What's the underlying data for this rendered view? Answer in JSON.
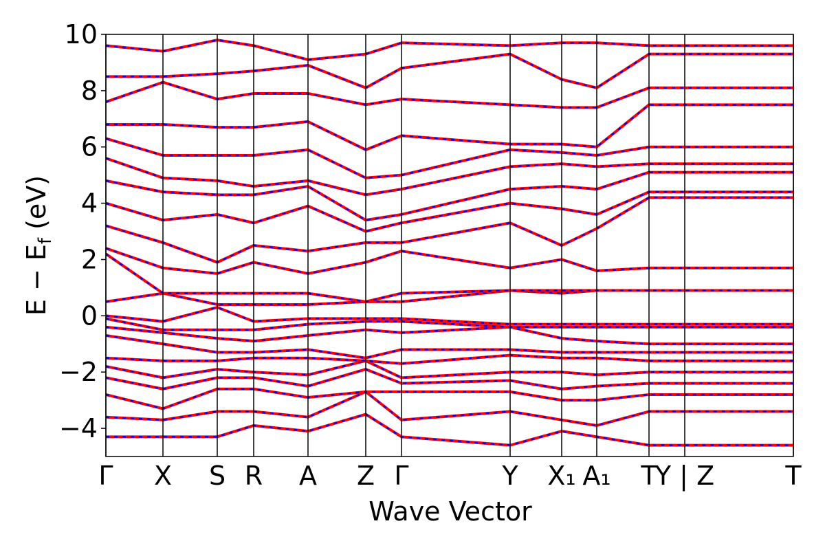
{
  "chart_data": {
    "type": "line",
    "xlabel": "Wave Vector",
    "ylabel": [
      "E − E",
      "f",
      " (eV)"
    ],
    "xlim": [
      0,
      10.0
    ],
    "ylim": [
      -5,
      10
    ],
    "xticks": [
      {
        "value": 0,
        "label": "Γ"
      },
      {
        "value": 0.83,
        "label": "X"
      },
      {
        "value": 1.62,
        "label": "S"
      },
      {
        "value": 2.15,
        "label": "R"
      },
      {
        "value": 2.94,
        "label": "A"
      },
      {
        "value": 3.78,
        "label": "Z"
      },
      {
        "value": 4.3,
        "label": "Γ"
      },
      {
        "value": 5.88,
        "label": "Y"
      },
      {
        "value": 6.63,
        "label": "X₁"
      },
      {
        "value": 7.14,
        "label": "A₁"
      },
      {
        "value": 7.9,
        "label": "T"
      },
      {
        "value": 8.42,
        "label": "Y | Z"
      },
      {
        "value": 10.0,
        "label": "T"
      }
    ],
    "yticks": [
      {
        "value": -4,
        "label": "−4"
      },
      {
        "value": -2,
        "label": "−2"
      },
      0,
      2,
      4,
      6,
      8,
      10
    ],
    "x": [
      0,
      0.83,
      1.62,
      2.15,
      2.94,
      3.78,
      4.3,
      5.88,
      6.63,
      7.14,
      7.9,
      8.42,
      10.0
    ],
    "line_styles": [
      {
        "color": "#ff0000",
        "width": 4
      },
      {
        "color": "#0000ff",
        "width": 2.5,
        "dash": [
          5,
          7
        ]
      }
    ],
    "bands": [
      [
        -4.3,
        -4.3,
        -4.3,
        -3.9,
        -4.1,
        -3.5,
        -4.3,
        -4.6,
        -4.1,
        -4.3,
        -4.6,
        -4.6,
        -4.6
      ],
      [
        -3.6,
        -3.7,
        -3.4,
        -3.4,
        -3.6,
        -2.7,
        -3.7,
        -3.4,
        -3.7,
        -3.9,
        -3.4,
        -3.4,
        -3.4
      ],
      [
        -2.8,
        -3.3,
        -2.6,
        -2.6,
        -2.9,
        -2.7,
        -2.7,
        -2.7,
        -3.0,
        -3.0,
        -2.8,
        -2.8,
        -2.8
      ],
      [
        -2.2,
        -2.6,
        -2.2,
        -2.2,
        -2.5,
        -1.9,
        -2.4,
        -2.3,
        -2.6,
        -2.5,
        -2.4,
        -2.4,
        -2.4
      ],
      [
        -1.8,
        -2.2,
        -1.9,
        -2.0,
        -2.1,
        -1.6,
        -2.2,
        -2.0,
        -2.0,
        -2.1,
        -2.0,
        -2.0,
        -2.0
      ],
      [
        -1.5,
        -1.6,
        -1.6,
        -1.5,
        -1.5,
        -1.6,
        -1.7,
        -1.4,
        -1.5,
        -1.5,
        -1.6,
        -1.6,
        -1.6
      ],
      [
        -0.7,
        -1.0,
        -1.3,
        -1.3,
        -1.2,
        -1.5,
        -1.2,
        -1.2,
        -1.3,
        -1.3,
        -1.3,
        -1.3,
        -1.3
      ],
      [
        -0.4,
        -0.6,
        -0.8,
        -0.9,
        -0.7,
        -0.5,
        -0.6,
        -0.4,
        -0.8,
        -0.9,
        -1.0,
        -1.0,
        -1.0
      ],
      [
        -0.1,
        -0.5,
        -0.5,
        -0.5,
        -0.3,
        -0.2,
        -0.2,
        -0.4,
        -0.4,
        -0.4,
        -0.4,
        -0.4,
        -0.4
      ],
      [
        0.0,
        -0.2,
        0.3,
        -0.2,
        -0.1,
        -0.1,
        -0.1,
        -0.3,
        -0.3,
        -0.3,
        -0.3,
        -0.3,
        -0.3
      ],
      [
        0.5,
        0.8,
        0.4,
        0.4,
        0.4,
        0.5,
        0.5,
        0.9,
        0.8,
        0.9,
        0.9,
        0.9,
        0.9
      ],
      [
        2.2,
        0.8,
        0.8,
        0.8,
        0.8,
        0.5,
        0.8,
        0.9,
        0.9,
        0.9,
        0.9,
        0.9,
        0.9
      ],
      [
        2.4,
        1.7,
        1.5,
        1.9,
        1.5,
        1.9,
        2.3,
        1.7,
        2.0,
        1.6,
        1.7,
        1.7,
        1.7
      ],
      [
        3.2,
        2.6,
        1.9,
        2.5,
        2.3,
        2.6,
        2.6,
        3.3,
        2.5,
        3.1,
        4.2,
        4.2,
        4.2
      ],
      [
        4.0,
        3.4,
        3.6,
        3.3,
        3.9,
        3.0,
        3.3,
        4.0,
        3.8,
        3.6,
        4.4,
        4.4,
        4.4
      ],
      [
        4.8,
        4.4,
        4.3,
        4.3,
        4.6,
        3.4,
        3.6,
        4.5,
        4.6,
        4.5,
        5.1,
        5.1,
        5.1
      ],
      [
        5.6,
        4.9,
        4.8,
        4.6,
        4.8,
        4.3,
        4.5,
        5.3,
        5.4,
        5.3,
        5.4,
        5.4,
        5.4
      ],
      [
        6.3,
        5.7,
        5.7,
        5.7,
        5.9,
        4.9,
        5.0,
        5.9,
        5.8,
        5.7,
        6.0,
        6.0,
        6.0
      ],
      [
        6.8,
        6.8,
        6.7,
        6.7,
        6.9,
        5.9,
        6.4,
        6.1,
        6.1,
        6.0,
        7.5,
        7.5,
        7.5
      ],
      [
        7.6,
        8.3,
        7.7,
        7.9,
        7.9,
        7.5,
        7.7,
        7.5,
        7.4,
        7.4,
        8.1,
        8.1,
        8.1
      ],
      [
        8.5,
        8.5,
        8.6,
        8.7,
        8.9,
        8.1,
        8.8,
        9.3,
        8.4,
        8.1,
        9.3,
        9.3,
        9.3
      ],
      [
        9.6,
        9.4,
        9.8,
        9.6,
        9.1,
        9.3,
        9.7,
        9.6,
        9.7,
        9.7,
        9.6,
        9.6,
        9.6
      ]
    ]
  }
}
